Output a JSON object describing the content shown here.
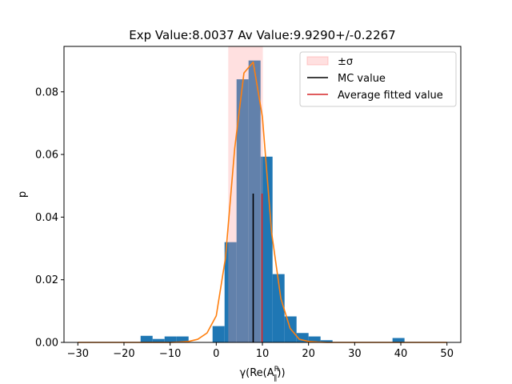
{
  "chart_data": {
    "type": "histogram",
    "title": "Exp Value:8.0037 Av Value:9.9290+/-0.2267",
    "xlabel": "γ(Re(A",
    "xlabel_sup": "R",
    "xlabel_sub": "∥",
    "xlabel_close": "))",
    "ylabel": "p",
    "xlim": [
      -33,
      53
    ],
    "ylim": [
      0,
      0.0945
    ],
    "xticks": [
      -30,
      -20,
      -10,
      0,
      10,
      20,
      30,
      40,
      50
    ],
    "yticks": [
      0.0,
      0.02,
      0.04,
      0.06,
      0.08
    ],
    "ytick_labels": [
      "0.00",
      "0.02",
      "0.04",
      "0.06",
      "0.08"
    ],
    "histogram": {
      "color": "#1f77b4",
      "bin_width": 2.6,
      "bin_starts": [
        -16.4,
        -13.8,
        -11.2,
        -8.6,
        -6.0,
        -3.4,
        -0.8,
        1.8,
        4.4,
        7.0,
        9.6,
        12.2,
        14.8,
        17.4,
        20.0,
        22.6,
        25.2,
        27.8,
        30.4,
        33.0,
        35.6,
        38.2
      ],
      "values": [
        0.0021,
        0.0011,
        0.0019,
        0.0019,
        0.0,
        0.0,
        0.0052,
        0.032,
        0.084,
        0.09,
        0.0593,
        0.0218,
        0.0083,
        0.003,
        0.0019,
        0.0007,
        0.0,
        0.0,
        0.0,
        0.0,
        0.0,
        0.0014
      ]
    },
    "sigma_band": {
      "x_range": [
        2.6,
        10.1
      ],
      "color": "#ff9999",
      "opacity": 0.3
    },
    "mc_value": {
      "x": 8.0037,
      "height": 0.0475,
      "color": "#000000"
    },
    "average_fitted": {
      "x": 9.929,
      "height": 0.0475,
      "color": "#d62728"
    },
    "fit_curve": {
      "color": "#ff7f0e",
      "x": [
        -30,
        -28,
        -26,
        -24,
        -22,
        -20,
        -18,
        -16,
        -14,
        -12,
        -10,
        -8,
        -6,
        -4,
        -2,
        0,
        2,
        4,
        6,
        8,
        10,
        12,
        14,
        16,
        18,
        20,
        22,
        24,
        26,
        28,
        30,
        32,
        34,
        36,
        38,
        40,
        42,
        44,
        46,
        48,
        50
      ],
      "y": [
        0,
        0,
        0,
        0,
        0,
        0,
        0,
        0,
        0,
        0,
        0,
        0.0001,
        0.0003,
        0.001,
        0.003,
        0.0085,
        0.027,
        0.062,
        0.086,
        0.0895,
        0.072,
        0.035,
        0.014,
        0.0045,
        0.001,
        0.0003,
        0.0001,
        0,
        0,
        0,
        0,
        0,
        0,
        0,
        0,
        0,
        0,
        0,
        0,
        0,
        0
      ]
    },
    "legend": {
      "position": "upper right",
      "entries": [
        {
          "label": "±σ",
          "kind": "patch",
          "color": "#ff9999"
        },
        {
          "label": "MC value",
          "kind": "line",
          "color": "#000000"
        },
        {
          "label": "Average fitted value",
          "kind": "line",
          "color": "#d62728"
        }
      ]
    }
  }
}
